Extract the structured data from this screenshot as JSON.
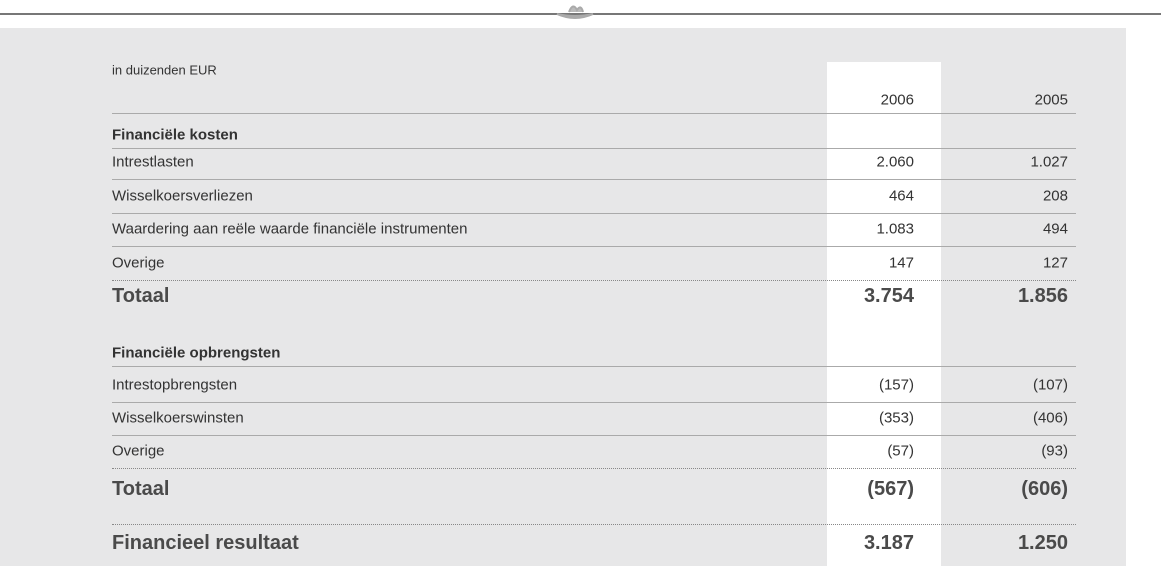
{
  "header": {
    "unit": "in duizenden EUR",
    "columns": [
      "2006",
      "2005"
    ]
  },
  "sections": [
    {
      "title": "Financiële kosten",
      "rows": [
        {
          "label": "Intrestlasten",
          "values": [
            "2.060",
            "1.027"
          ]
        },
        {
          "label": "Wisselkoersverliezen",
          "values": [
            "464",
            "208"
          ]
        },
        {
          "label": "Waardering aan reële waarde financiële instrumenten",
          "values": [
            "1.083",
            "494"
          ]
        },
        {
          "label": "Overige",
          "values": [
            "147",
            "127"
          ]
        }
      ],
      "total": {
        "label": "Totaal",
        "values": [
          "3.754",
          "1.856"
        ]
      }
    },
    {
      "title": "Financiële opbrengsten",
      "rows": [
        {
          "label": "Intrestopbrengsten",
          "values": [
            "(157)",
            "(107)"
          ]
        },
        {
          "label": "Wisselkoerswinsten",
          "values": [
            "(353)",
            "(406)"
          ]
        },
        {
          "label": "Overige",
          "values": [
            "(57)",
            "(93)"
          ]
        }
      ],
      "total": {
        "label": "Totaal",
        "values": [
          "(567)",
          "(606)"
        ]
      }
    }
  ],
  "result": {
    "label": "Financieel resultaat",
    "values": [
      "3.187",
      "1.250"
    ]
  }
}
